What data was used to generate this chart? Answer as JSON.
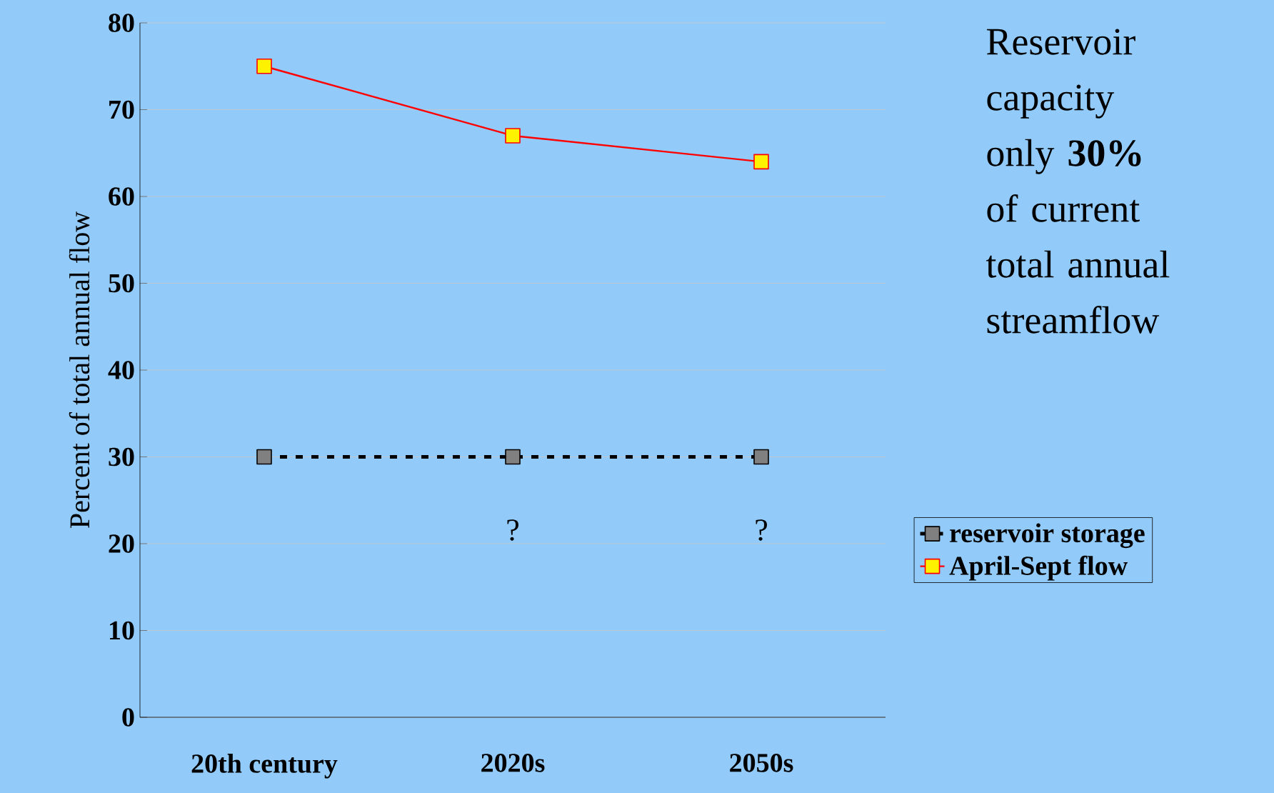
{
  "chart_data": {
    "type": "line",
    "ylabel": "Percent of total annual flow",
    "categories": [
      "20th century",
      "2020s",
      "2050s"
    ],
    "series": [
      {
        "name": "reservoir storage",
        "color": "#000000",
        "line_style": "dashed",
        "values": [
          30,
          30,
          30
        ]
      },
      {
        "name": "April-Sept flow",
        "color": "#ff0000",
        "line_style": "solid",
        "values": [
          75,
          67,
          64
        ]
      }
    ],
    "marker": "square",
    "ylim": [
      0,
      80
    ],
    "yticks": [
      0,
      10,
      20,
      30,
      40,
      50,
      60,
      70,
      80
    ],
    "grid": "y",
    "legend": "right",
    "annotations": [
      "Reservoir capacity only **30%** of current total annual streamflow",
      "?",
      "?"
    ]
  }
}
